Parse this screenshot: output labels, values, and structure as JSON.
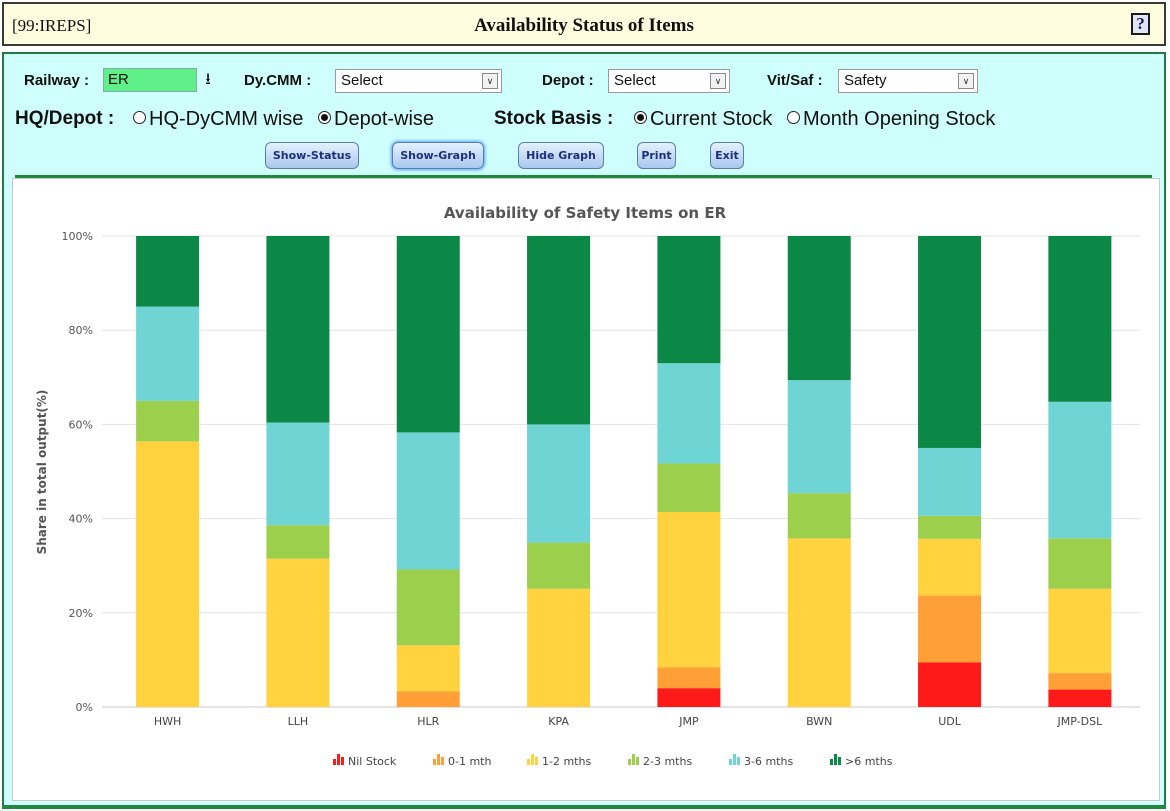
{
  "window": {
    "code": "[99:IREPS]",
    "title": "Availability Status of Items",
    "help_icon": "?"
  },
  "filters": {
    "railway_label": "Railway :",
    "railway_value": "ER",
    "dycmm_label": "Dy.CMM :",
    "dycmm_value": "Select",
    "depot_label": "Depot :",
    "depot_value": "Select",
    "vitsaf_label": "Vit/Saf :",
    "vitsaf_value": "Safety"
  },
  "options": {
    "hq_depot_label": "HQ/Depot :",
    "hq_dycmm_option": "HQ-DyCMM wise",
    "depot_wise_option": "Depot-wise",
    "stock_basis_label": "Stock Basis :",
    "current_stock_option": "Current Stock",
    "month_opening_option": "Month Opening Stock"
  },
  "buttons": {
    "show_status": "Show-Status",
    "show_graph": "Show-Graph",
    "hide_graph": "Hide Graph",
    "print": "Print",
    "exit": "Exit"
  },
  "colors": {
    "nil": "#ff1a1a",
    "m01": "#ff9f35",
    "m12": "#ffd23e",
    "m23": "#9ccf4c",
    "m36": "#6fd4d4",
    "m6p": "#0b8746"
  },
  "chart_data": {
    "type": "bar",
    "stacked": true,
    "title": "Availability of Safety Items on ER",
    "ylabel": "Share in total output(%)",
    "xlabel": "",
    "ylim": [
      0,
      100
    ],
    "yticks": [
      "0%",
      "20%",
      "40%",
      "60%",
      "80%",
      "100%"
    ],
    "grid": true,
    "legend_position": "bottom",
    "categories": [
      "HWH",
      "LLH",
      "HLR",
      "KPA",
      "JMP",
      "BWN",
      "UDL",
      "JMP-DSL"
    ],
    "series": [
      {
        "name": "Nil Stock",
        "color": "#ff1a1a",
        "values": [
          0,
          0,
          0,
          0,
          4,
          0,
          9.5,
          3.7
        ]
      },
      {
        "name": "0-1 mth",
        "color": "#ff9f35",
        "values": [
          0,
          0,
          3.3,
          0,
          4.4,
          0,
          14.2,
          3.5
        ]
      },
      {
        "name": "1-2 mths",
        "color": "#ffd23e",
        "values": [
          56.4,
          31.5,
          9.8,
          25.1,
          33,
          35.8,
          12,
          17.9
        ]
      },
      {
        "name": "2-3 mths",
        "color": "#9ccf4c",
        "values": [
          8.6,
          7.1,
          16.1,
          9.8,
          10.3,
          9.6,
          4.9,
          10.7
        ]
      },
      {
        "name": "3-6 mths",
        "color": "#6fd4d4",
        "values": [
          20,
          21.8,
          29.1,
          25.1,
          21.3,
          24,
          14.4,
          29
        ]
      },
      {
        "name": ">6 mths",
        "color": "#0b8746",
        "values": [
          15,
          39.6,
          41.7,
          40,
          27,
          30.6,
          45,
          35.2
        ]
      }
    ]
  }
}
